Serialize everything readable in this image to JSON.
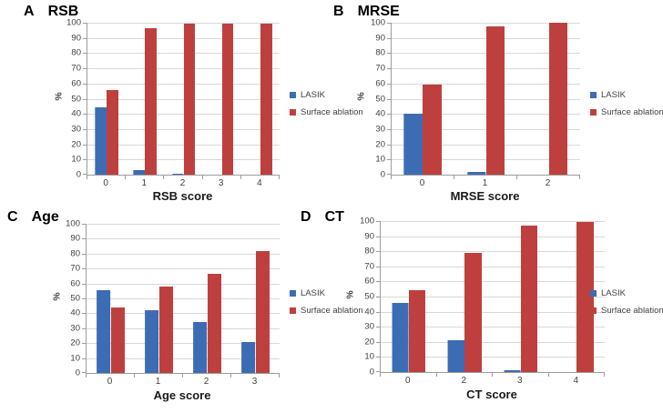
{
  "legend": {
    "items": [
      {
        "label": "LASIK",
        "color": "#3C6CB4"
      },
      {
        "label": "Surface ablation",
        "color": "#BE403E"
      }
    ]
  },
  "colors": {
    "lasik_blue": "#3C6CB4",
    "surface_ablation_red": "#BE403E",
    "gridline": "#d8d8d8",
    "axis": "#9c9c9c"
  },
  "chart_data": [
    {
      "type": "bar",
      "panel_label": "A",
      "title": "RSB",
      "xlabel": "RSB score",
      "ylabel": "%",
      "ylim": [
        0,
        100
      ],
      "yticks": [
        0,
        10,
        20,
        30,
        40,
        50,
        60,
        70,
        80,
        90,
        100
      ],
      "grid": true,
      "legend_position": "right",
      "categories": [
        "0",
        "1",
        "2",
        "3",
        "4"
      ],
      "series": [
        {
          "name": "LASIK",
          "color": "#3C6CB4",
          "values": [
            44.5,
            3,
            0.5,
            0,
            0
          ]
        },
        {
          "name": "Surface ablation",
          "color": "#BE403E",
          "values": [
            55.5,
            96.5,
            99.5,
            99.5,
            99.5
          ]
        }
      ]
    },
    {
      "type": "bar",
      "panel_label": "B",
      "title": "MRSE",
      "xlabel": "MRSE score",
      "ylabel": "%",
      "ylim": [
        0,
        100
      ],
      "yticks": [
        0,
        10,
        20,
        30,
        40,
        50,
        60,
        70,
        80,
        90,
        100
      ],
      "grid": true,
      "legend_position": "right",
      "categories": [
        "0",
        "1",
        "2"
      ],
      "series": [
        {
          "name": "LASIK",
          "color": "#3C6CB4",
          "values": [
            40,
            2,
            0
          ]
        },
        {
          "name": "Surface ablation",
          "color": "#BE403E",
          "values": [
            59.5,
            97.5,
            100
          ]
        }
      ]
    },
    {
      "type": "bar",
      "panel_label": "C",
      "title": "Age",
      "xlabel": "Age score",
      "ylabel": "%",
      "ylim": [
        0,
        100
      ],
      "yticks": [
        0,
        10,
        20,
        30,
        40,
        50,
        60,
        70,
        80,
        90,
        100
      ],
      "grid": true,
      "legend_position": "right",
      "categories": [
        "0",
        "1",
        "2",
        "3"
      ],
      "series": [
        {
          "name": "LASIK",
          "color": "#3C6CB4",
          "values": [
            55.5,
            42,
            34,
            20.5
          ]
        },
        {
          "name": "Surface ablation",
          "color": "#BE403E",
          "values": [
            44,
            58,
            66.5,
            82
          ]
        }
      ]
    },
    {
      "type": "bar",
      "panel_label": "D",
      "title": "CT",
      "xlabel": "CT score",
      "ylabel": "%",
      "ylim": [
        0,
        100
      ],
      "yticks": [
        0,
        10,
        20,
        30,
        40,
        50,
        60,
        70,
        80,
        90,
        100
      ],
      "grid": true,
      "legend_position": "right",
      "categories": [
        "0",
        "2",
        "3",
        "4"
      ],
      "series": [
        {
          "name": "LASIK",
          "color": "#3C6CB4",
          "values": [
            45.5,
            21,
            1.5,
            0
          ]
        },
        {
          "name": "Surface ablation",
          "color": "#BE403E",
          "values": [
            54,
            79,
            97,
            99.5
          ]
        }
      ]
    }
  ]
}
